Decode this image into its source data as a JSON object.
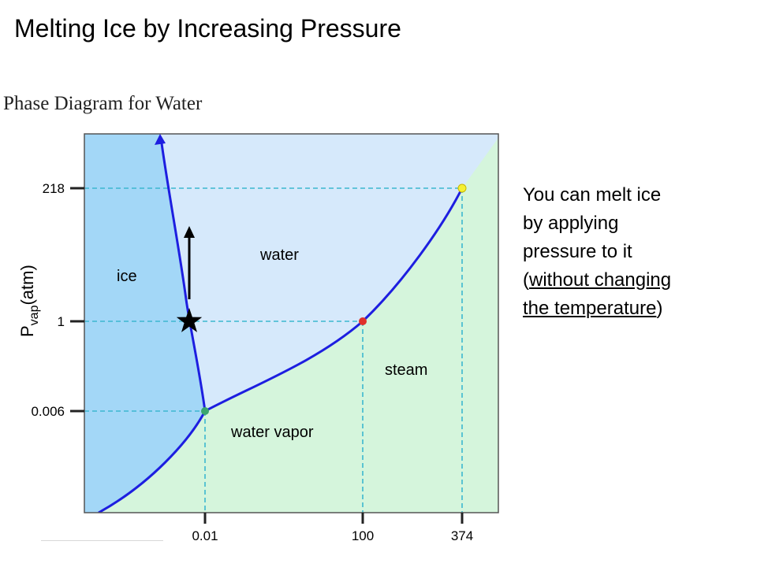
{
  "slide": {
    "title": "Melting Ice by Increasing Pressure"
  },
  "diagram": {
    "title": "Phase Diagram for Water",
    "y_axis_label": {
      "main": "P",
      "subscript": "vap",
      "unit": "(atm)"
    },
    "y_ticks": [
      "218",
      "1",
      "0.006"
    ],
    "x_ticks": [
      "0.01",
      "100",
      "374"
    ],
    "regions": {
      "ice": "ice",
      "water": "water",
      "steam": "steam",
      "vapor": "water vapor"
    },
    "colors": {
      "ice": "#a3d7f7",
      "water": "#d6e9fb",
      "vapor": "#d5f5dc",
      "curve": "#1d1ee0",
      "guide": "#3cb7d0",
      "triple_point": "#3aa66e",
      "boiling_point": "#e0312a",
      "critical_point": "#f5f032"
    }
  },
  "note": {
    "line1": "You can melt ice",
    "line2": "by applying",
    "line3": "pressure to it",
    "line4_pre": "(",
    "line4_u": "without changing",
    "line5_u": "the temperature",
    "line5_post": ")"
  }
}
